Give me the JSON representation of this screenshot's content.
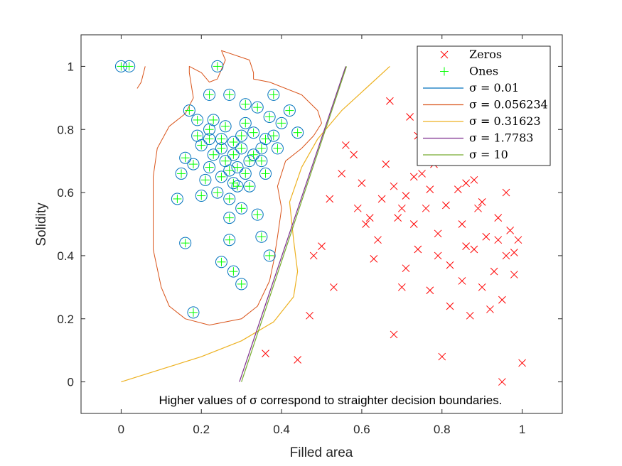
{
  "chart_data": {
    "type": "scatter",
    "xlabel": "Filled area",
    "ylabel": "Solidity",
    "xlim": [
      -0.1,
      1.1
    ],
    "ylim": [
      -0.1,
      1.1
    ],
    "x_ticks": [
      0,
      0.2,
      0.4,
      0.6,
      0.8,
      1
    ],
    "y_ticks": [
      0,
      0.2,
      0.4,
      0.6,
      0.8,
      1
    ],
    "x_tick_labels": [
      "0",
      "0.2",
      "0.4",
      "0.6",
      "0.8",
      "1"
    ],
    "y_tick_labels": [
      "0",
      "0.2",
      "0.4",
      "0.6",
      "0.8",
      "1"
    ],
    "annotation": "Higher values of σ correspond to straighter decision boundaries.",
    "legend_position": "top-right",
    "grid": false,
    "series": [
      {
        "name": "Zeros",
        "marker": "x",
        "color": "#ff0000",
        "points": [
          [
            0.36,
            0.09
          ],
          [
            0.44,
            0.07
          ],
          [
            0.47,
            0.21
          ],
          [
            0.48,
            0.4
          ],
          [
            0.5,
            0.43
          ],
          [
            0.53,
            0.3
          ],
          [
            0.55,
            0.66
          ],
          [
            0.58,
            0.72
          ],
          [
            0.6,
            0.63
          ],
          [
            0.62,
            0.52
          ],
          [
            0.64,
            0.45
          ],
          [
            0.66,
            0.69
          ],
          [
            0.67,
            0.89
          ],
          [
            0.68,
            0.62
          ],
          [
            0.69,
            0.52
          ],
          [
            0.7,
            0.3
          ],
          [
            0.71,
            0.59
          ],
          [
            0.72,
            0.84
          ],
          [
            0.73,
            0.5
          ],
          [
            0.74,
            0.42
          ],
          [
            0.75,
            0.66
          ],
          [
            0.76,
            0.55
          ],
          [
            0.77,
            0.29
          ],
          [
            0.78,
            0.69
          ],
          [
            0.79,
            0.47
          ],
          [
            0.8,
            0.08
          ],
          [
            0.81,
            0.56
          ],
          [
            0.82,
            0.37
          ],
          [
            0.83,
            0.72
          ],
          [
            0.84,
            0.61
          ],
          [
            0.85,
            0.5
          ],
          [
            0.86,
            0.43
          ],
          [
            0.87,
            0.21
          ],
          [
            0.88,
            0.64
          ],
          [
            0.89,
            0.55
          ],
          [
            0.9,
            0.3
          ],
          [
            0.91,
            0.46
          ],
          [
            0.92,
            0.7
          ],
          [
            0.93,
            0.35
          ],
          [
            0.94,
            0.52
          ],
          [
            0.95,
            0.26
          ],
          [
            0.96,
            0.4
          ],
          [
            0.97,
            0.48
          ],
          [
            0.98,
            0.34
          ],
          [
            1.0,
            0.06
          ],
          [
            0.95,
            0.0
          ],
          [
            0.68,
            0.15
          ],
          [
            0.56,
            0.75
          ],
          [
            0.59,
            0.55
          ],
          [
            0.63,
            0.39
          ],
          [
            0.65,
            0.58
          ],
          [
            0.71,
            0.36
          ],
          [
            0.74,
            0.78
          ],
          [
            0.77,
            0.61
          ],
          [
            0.79,
            0.4
          ],
          [
            0.82,
            0.24
          ],
          [
            0.84,
            0.81
          ],
          [
            0.86,
            0.63
          ],
          [
            0.88,
            0.42
          ],
          [
            0.9,
            0.57
          ],
          [
            0.92,
            0.23
          ],
          [
            0.94,
            0.45
          ],
          [
            0.96,
            0.6
          ],
          [
            0.98,
            0.41
          ],
          [
            0.52,
            0.58
          ],
          [
            0.61,
            0.5
          ],
          [
            0.73,
            0.65
          ],
          [
            0.85,
            0.32
          ],
          [
            0.99,
            0.45
          ],
          [
            0.7,
            0.55
          ]
        ]
      },
      {
        "name": "Ones",
        "marker": "+",
        "color": "#00ff00",
        "points": [
          [
            0.0,
            1.0
          ],
          [
            0.02,
            1.0
          ],
          [
            0.24,
            1.0
          ],
          [
            0.22,
            0.91
          ],
          [
            0.27,
            0.91
          ],
          [
            0.31,
            0.88
          ],
          [
            0.38,
            0.91
          ],
          [
            0.42,
            0.86
          ],
          [
            0.34,
            0.87
          ],
          [
            0.17,
            0.86
          ],
          [
            0.19,
            0.83
          ],
          [
            0.22,
            0.8
          ],
          [
            0.25,
            0.77
          ],
          [
            0.28,
            0.76
          ],
          [
            0.3,
            0.74
          ],
          [
            0.33,
            0.72
          ],
          [
            0.35,
            0.7
          ],
          [
            0.2,
            0.75
          ],
          [
            0.23,
            0.72
          ],
          [
            0.26,
            0.7
          ],
          [
            0.29,
            0.68
          ],
          [
            0.31,
            0.66
          ],
          [
            0.22,
            0.68
          ],
          [
            0.25,
            0.65
          ],
          [
            0.28,
            0.63
          ],
          [
            0.24,
            0.6
          ],
          [
            0.27,
            0.58
          ],
          [
            0.29,
            0.62
          ],
          [
            0.33,
            0.79
          ],
          [
            0.36,
            0.77
          ],
          [
            0.39,
            0.74
          ],
          [
            0.37,
            0.84
          ],
          [
            0.4,
            0.82
          ],
          [
            0.44,
            0.79
          ],
          [
            0.21,
            0.64
          ],
          [
            0.18,
            0.69
          ],
          [
            0.15,
            0.66
          ],
          [
            0.16,
            0.71
          ],
          [
            0.14,
            0.58
          ],
          [
            0.2,
            0.59
          ],
          [
            0.32,
            0.62
          ],
          [
            0.36,
            0.66
          ],
          [
            0.3,
            0.55
          ],
          [
            0.27,
            0.52
          ],
          [
            0.34,
            0.53
          ],
          [
            0.31,
            0.82
          ],
          [
            0.26,
            0.81
          ],
          [
            0.28,
            0.72
          ],
          [
            0.3,
            0.78
          ],
          [
            0.32,
            0.7
          ],
          [
            0.25,
            0.74
          ],
          [
            0.22,
            0.77
          ],
          [
            0.27,
            0.67
          ],
          [
            0.23,
            0.83
          ],
          [
            0.19,
            0.78
          ],
          [
            0.35,
            0.74
          ],
          [
            0.16,
            0.44
          ],
          [
            0.27,
            0.45
          ],
          [
            0.35,
            0.46
          ],
          [
            0.37,
            0.4
          ],
          [
            0.25,
            0.38
          ],
          [
            0.28,
            0.35
          ],
          [
            0.3,
            0.31
          ],
          [
            0.18,
            0.22
          ],
          [
            0.38,
            0.78
          ]
        ]
      }
    ],
    "boundaries": [
      {
        "name": "σ = 0.01",
        "color": "#0072bd"
      },
      {
        "name": "σ = 0.056234",
        "color": "#d95319"
      },
      {
        "name": "σ = 0.31623",
        "color": "#edb120",
        "points": [
          [
            0.0,
            0.0
          ],
          [
            0.1,
            0.04
          ],
          [
            0.2,
            0.08
          ],
          [
            0.3,
            0.13
          ],
          [
            0.38,
            0.19
          ],
          [
            0.43,
            0.27
          ],
          [
            0.44,
            0.35
          ],
          [
            0.43,
            0.45
          ],
          [
            0.42,
            0.57
          ],
          [
            0.45,
            0.68
          ],
          [
            0.49,
            0.77
          ],
          [
            0.55,
            0.86
          ],
          [
            0.61,
            0.93
          ],
          [
            0.67,
            1.0
          ]
        ]
      },
      {
        "name": "σ = 1.7783",
        "color": "#7e2f8e",
        "points": [
          [
            0.295,
            0.0
          ],
          [
            0.56,
            1.0
          ]
        ]
      },
      {
        "name": "σ = 10",
        "color": "#77ac30",
        "points": [
          [
            0.3,
            0.0
          ],
          [
            0.562,
            1.0
          ]
        ]
      }
    ]
  }
}
